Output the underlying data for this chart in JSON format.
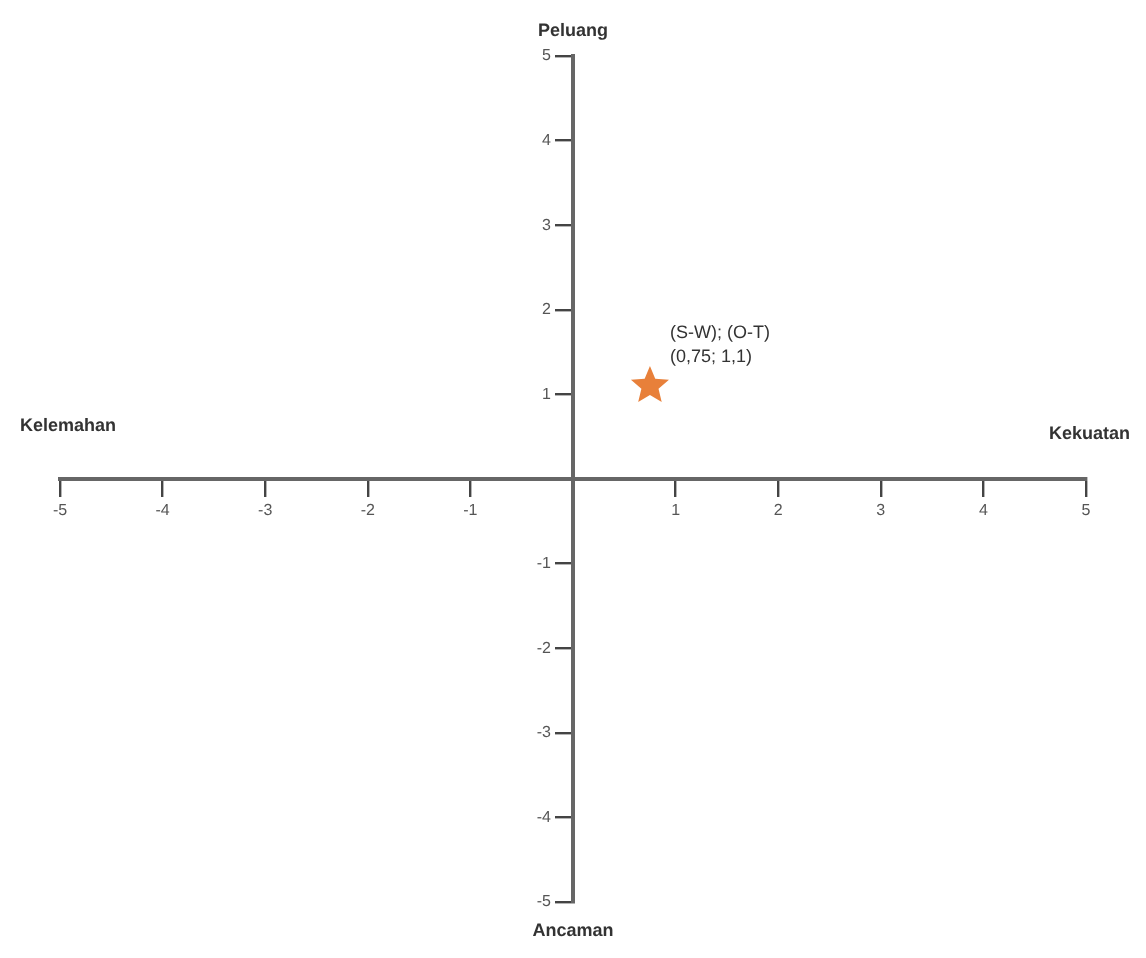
{
  "chart_data": {
    "type": "scatter",
    "x": [
      0.75
    ],
    "series": [
      {
        "color": "#e8803a",
        "values": [
          1.1
        ],
        "value_labels": [
          "(0,75; 1,1)"
        ]
      }
    ],
    "annotations": [
      {
        "text": "(S-W); (O-T)",
        "x": 0.75,
        "y": 1.1
      },
      "Peluang",
      "Ancaman",
      "Kelemahan",
      "Kekuatan"
    ],
    "xlim": [
      -5,
      5
    ],
    "ylim": [
      -5,
      5
    ],
    "xticks": [
      -5,
      -4,
      -3,
      -2,
      -1,
      1,
      2,
      3,
      4,
      5
    ],
    "yticks": [
      -5,
      -4,
      -3,
      -2,
      -1,
      1,
      2,
      3,
      4,
      5
    ],
    "marker": "star",
    "grid": false,
    "legend": false
  }
}
